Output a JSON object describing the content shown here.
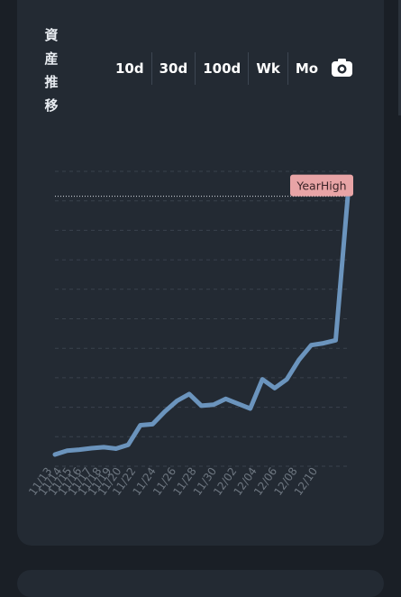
{
  "header": {
    "title_chars": [
      "資",
      "産",
      "推",
      "移"
    ],
    "range_buttons": [
      "10d",
      "30d",
      "100d",
      "Wk",
      "Mo"
    ],
    "camera_icon": "camera-icon"
  },
  "chart_data": {
    "type": "line",
    "annotation": "YearHigh",
    "line_color": "#6b94bd",
    "grid": true,
    "x_tick_labels": [
      "11/13",
      "11/14",
      "11/15",
      "11/16",
      "11/17",
      "11/18",
      "11/19",
      "11/20",
      "11/22",
      "11/24",
      "11/26",
      "11/28",
      "11/30",
      "12/02",
      "12/04",
      "12/06",
      "12/08",
      "12/10"
    ],
    "values": [
      0.0,
      4.0,
      5.0,
      6.5,
      7.5,
      6.0,
      10.0,
      30.0,
      31.0,
      44.0,
      55.0,
      62.0,
      50.0,
      51.0,
      57.0,
      52.0,
      47.0,
      77.0,
      68.0,
      77.0,
      97.0,
      112.0,
      114.0,
      117.0,
      265.0
    ],
    "ylim": [
      -12,
      290
    ]
  }
}
